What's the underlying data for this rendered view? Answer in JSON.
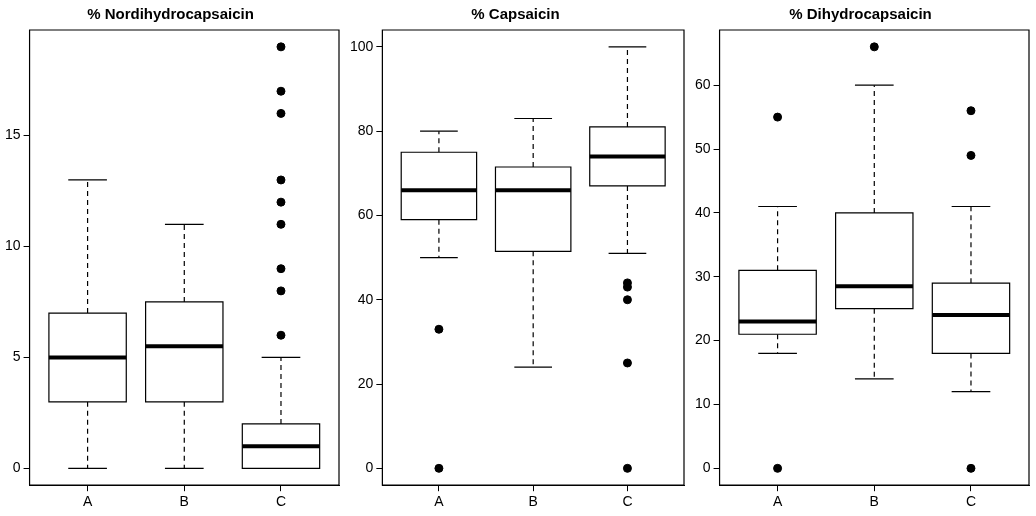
{
  "chart_data": [
    {
      "type": "box",
      "title": "% Nordihydrocapsaicin",
      "categories": [
        "A",
        "B",
        "C"
      ],
      "boxes": [
        {
          "low": 0,
          "q1": 3,
          "median": 5,
          "q3": 7,
          "high": 13
        },
        {
          "low": 0,
          "q1": 3,
          "median": 5.5,
          "q3": 7.5,
          "high": 11
        },
        {
          "low": 0,
          "q1": 0,
          "median": 1,
          "q3": 2,
          "high": 5,
          "outliers": [
            6,
            8,
            9,
            11,
            12,
            13,
            16,
            17,
            19
          ]
        }
      ],
      "ylim": [
        -0.76,
        19.76
      ],
      "yticks": [
        0,
        5,
        10,
        15
      ],
      "grid": false
    },
    {
      "type": "box",
      "title": "% Capsaicin",
      "categories": [
        "A",
        "B",
        "C"
      ],
      "boxes": [
        {
          "low": 50,
          "q1": 59,
          "median": 66,
          "q3": 75,
          "high": 80,
          "outliers": [
            33,
            0
          ]
        },
        {
          "low": 24,
          "q1": 51.5,
          "median": 66,
          "q3": 71.5,
          "high": 83
        },
        {
          "low": 51,
          "q1": 67,
          "median": 74,
          "q3": 81,
          "high": 100,
          "outliers": [
            44,
            43,
            40,
            25,
            0
          ]
        }
      ],
      "ylim": [
        -4,
        104
      ],
      "yticks": [
        0,
        20,
        40,
        60,
        80,
        100
      ],
      "grid": false
    },
    {
      "type": "box",
      "title": "% Dihydrocapsaicin",
      "categories": [
        "A",
        "B",
        "C"
      ],
      "boxes": [
        {
          "low": 18,
          "q1": 21,
          "median": 23,
          "q3": 31,
          "high": 41,
          "outliers": [
            55,
            0
          ]
        },
        {
          "low": 14,
          "q1": 25,
          "median": 28.5,
          "q3": 40,
          "high": 60,
          "outliers": [
            66
          ]
        },
        {
          "low": 12,
          "q1": 18,
          "median": 24,
          "q3": 29,
          "high": 41,
          "outliers": [
            56,
            49,
            0
          ]
        }
      ],
      "ylim": [
        -2.64,
        68.64
      ],
      "yticks": [
        0,
        10,
        20,
        30,
        40,
        50,
        60
      ],
      "grid": false
    }
  ]
}
